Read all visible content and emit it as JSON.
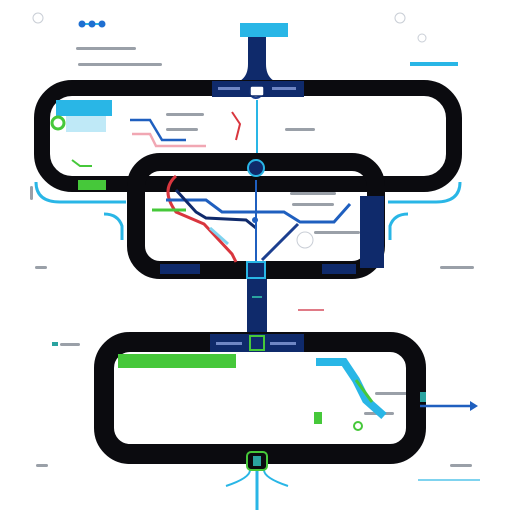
{
  "colors": {
    "frame": "#0b0b0f",
    "navy": "#0f2a6b",
    "connector": "#1c3f8f",
    "cyan": "#29b6e6",
    "light_blue": "#7fd3ef",
    "green": "#46c83a",
    "red": "#d9363e",
    "pink": "#f1a7b3",
    "arrow": "#1f5fbf",
    "text_gray": "#8a8f98",
    "marker_teal": "#2aa3a0"
  },
  "icons": {
    "top_node": "server-icon",
    "mid_node": "hub-icon",
    "lower_node": "junction-icon",
    "bottom_node": "terminal-icon",
    "outputs": "arrow-right-icon"
  },
  "nodes": [
    "top",
    "upper",
    "middle",
    "lower",
    "bottom"
  ],
  "routes": [
    "red",
    "blue",
    "navy",
    "cyan",
    "green"
  ]
}
